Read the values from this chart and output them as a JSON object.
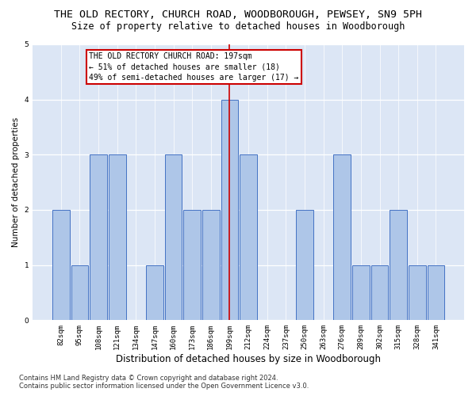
{
  "title": "THE OLD RECTORY, CHURCH ROAD, WOODBOROUGH, PEWSEY, SN9 5PH",
  "subtitle": "Size of property relative to detached houses in Woodborough",
  "xlabel": "Distribution of detached houses by size in Woodborough",
  "ylabel": "Number of detached properties",
  "categories": [
    "82sqm",
    "95sqm",
    "108sqm",
    "121sqm",
    "134sqm",
    "147sqm",
    "160sqm",
    "173sqm",
    "186sqm",
    "199sqm",
    "212sqm",
    "224sqm",
    "237sqm",
    "250sqm",
    "263sqm",
    "276sqm",
    "289sqm",
    "302sqm",
    "315sqm",
    "328sqm",
    "341sqm"
  ],
  "values": [
    2,
    1,
    3,
    3,
    0,
    1,
    3,
    2,
    2,
    4,
    3,
    0,
    0,
    2,
    0,
    3,
    1,
    1,
    2,
    1,
    1
  ],
  "bar_color": "#aec6e8",
  "bar_edge_color": "#4472c4",
  "highlight_index": 9,
  "highlight_line_color": "#cc0000",
  "annotation_text": "THE OLD RECTORY CHURCH ROAD: 197sqm\n← 51% of detached houses are smaller (18)\n49% of semi-detached houses are larger (17) →",
  "annotation_box_color": "#ffffff",
  "annotation_box_edge_color": "#cc0000",
  "ylim": [
    0,
    5
  ],
  "yticks": [
    0,
    1,
    2,
    3,
    4,
    5
  ],
  "footer": "Contains HM Land Registry data © Crown copyright and database right 2024.\nContains public sector information licensed under the Open Government Licence v3.0.",
  "background_color": "#dce6f5",
  "title_fontsize": 9.5,
  "subtitle_fontsize": 8.5,
  "xlabel_fontsize": 8.5,
  "ylabel_fontsize": 7.5,
  "tick_fontsize": 6.5,
  "footer_fontsize": 6.0,
  "ann_fontsize": 7.0
}
